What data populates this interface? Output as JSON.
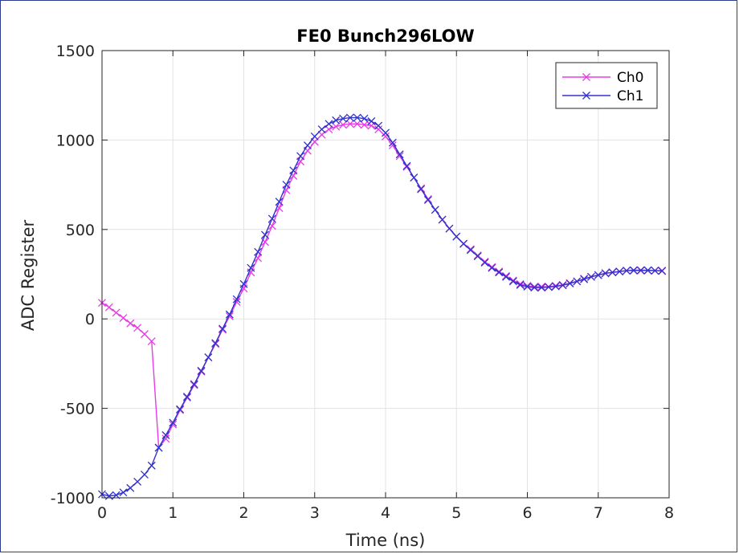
{
  "chart_data": {
    "type": "line",
    "title": "FE0 Bunch296LOW",
    "xlabel": "Time (ns)",
    "ylabel": "ADC Register",
    "xlim": [
      0,
      8
    ],
    "ylim": [
      -1000,
      1500
    ],
    "xticks": [
      "0",
      "1",
      "2",
      "3",
      "4",
      "5",
      "6",
      "7",
      "8"
    ],
    "yticks": [
      "-1000",
      "-500",
      "0",
      "500",
      "1000",
      "1500"
    ],
    "grid": true,
    "legend_position": "top-right",
    "series": [
      {
        "name": "Ch0",
        "color": "#e63de6",
        "marker": "x",
        "x": [
          0.0,
          0.1,
          0.2,
          0.3,
          0.4,
          0.5,
          0.6,
          0.7,
          0.8,
          0.9,
          1.0,
          1.1,
          1.2,
          1.3,
          1.4,
          1.5,
          1.6,
          1.7,
          1.8,
          1.9,
          2.0,
          2.1,
          2.2,
          2.3,
          2.4,
          2.5,
          2.6,
          2.7,
          2.8,
          2.9,
          3.0,
          3.1,
          3.2,
          3.3,
          3.4,
          3.5,
          3.6,
          3.7,
          3.8,
          3.9,
          4.0,
          4.1,
          4.2,
          4.3,
          4.4,
          4.5,
          4.6,
          4.7,
          4.8,
          4.9,
          5.0,
          5.1,
          5.2,
          5.3,
          5.4,
          5.5,
          5.6,
          5.7,
          5.8,
          5.9,
          6.0,
          6.1,
          6.2,
          6.3,
          6.4,
          6.5,
          6.6,
          6.7,
          6.8,
          6.9,
          7.0,
          7.1,
          7.2,
          7.3,
          7.4,
          7.5,
          7.6,
          7.7,
          7.8,
          7.9
        ],
        "values": [
          90,
          65,
          35,
          5,
          -25,
          -50,
          -85,
          -125,
          -720,
          -670,
          -590,
          -510,
          -440,
          -370,
          -295,
          -215,
          -140,
          -60,
          15,
          95,
          170,
          260,
          340,
          430,
          520,
          620,
          720,
          800,
          880,
          940,
          990,
          1030,
          1060,
          1075,
          1085,
          1090,
          1090,
          1085,
          1080,
          1060,
          1020,
          970,
          910,
          850,
          790,
          730,
          670,
          610,
          555,
          505,
          460,
          420,
          390,
          355,
          320,
          290,
          265,
          240,
          215,
          195,
          185,
          180,
          180,
          180,
          185,
          190,
          200,
          210,
          225,
          235,
          245,
          255,
          260,
          265,
          270,
          270,
          270,
          270,
          270,
          270
        ]
      },
      {
        "name": "Ch1",
        "color": "#3333cc",
        "marker": "x",
        "x": [
          0.0,
          0.1,
          0.2,
          0.3,
          0.4,
          0.5,
          0.6,
          0.7,
          0.8,
          0.9,
          1.0,
          1.1,
          1.2,
          1.3,
          1.4,
          1.5,
          1.6,
          1.7,
          1.8,
          1.9,
          2.0,
          2.1,
          2.2,
          2.3,
          2.4,
          2.5,
          2.6,
          2.7,
          2.8,
          2.9,
          3.0,
          3.1,
          3.2,
          3.3,
          3.4,
          3.5,
          3.6,
          3.7,
          3.8,
          3.9,
          4.0,
          4.1,
          4.2,
          4.3,
          4.4,
          4.5,
          4.6,
          4.7,
          4.8,
          4.9,
          5.0,
          5.1,
          5.2,
          5.3,
          5.4,
          5.5,
          5.6,
          5.7,
          5.8,
          5.9,
          6.0,
          6.1,
          6.2,
          6.3,
          6.4,
          6.5,
          6.6,
          6.7,
          6.8,
          6.9,
          7.0,
          7.1,
          7.2,
          7.3,
          7.4,
          7.5,
          7.6,
          7.7,
          7.8,
          7.9
        ],
        "values": [
          -980,
          -990,
          -985,
          -970,
          -945,
          -910,
          -870,
          -820,
          -720,
          -650,
          -580,
          -505,
          -435,
          -365,
          -290,
          -215,
          -135,
          -55,
          25,
          110,
          195,
          285,
          375,
          470,
          560,
          655,
          750,
          830,
          910,
          970,
          1020,
          1060,
          1090,
          1110,
          1120,
          1125,
          1125,
          1120,
          1105,
          1080,
          1040,
          985,
          920,
          855,
          790,
          725,
          665,
          610,
          555,
          505,
          460,
          420,
          385,
          350,
          315,
          285,
          260,
          235,
          210,
          190,
          180,
          175,
          175,
          178,
          182,
          188,
          198,
          210,
          222,
          235,
          245,
          255,
          260,
          265,
          270,
          272,
          272,
          272,
          270,
          268
        ]
      }
    ]
  }
}
